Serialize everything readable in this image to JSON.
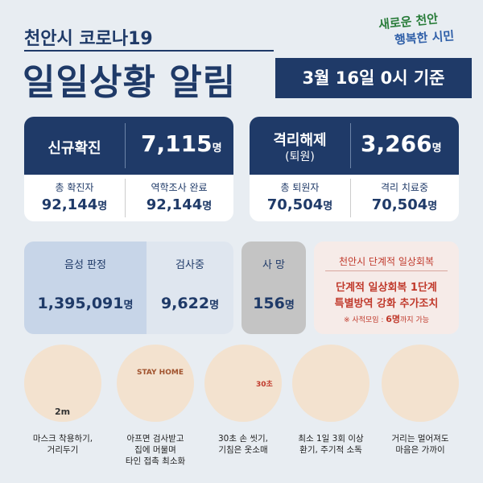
{
  "header": {
    "title_small": "천안시 코로나19",
    "title_big": "일일상황 알림",
    "date": "3월 16일 0시 기준",
    "logo_line1": "새로운 천안",
    "logo_line2": "행복한 시민"
  },
  "cards": {
    "new_cases": {
      "label": "신규확진",
      "value": "7,115",
      "unit": "명"
    },
    "total_cases": {
      "label": "총 확진자",
      "value": "92,144",
      "unit": "명"
    },
    "investigated": {
      "label": "역학조사 완료",
      "value": "92,144",
      "unit": "명"
    },
    "released": {
      "label": "격리해제",
      "sublabel": "(퇴원)",
      "value": "3,266",
      "unit": "명"
    },
    "total_released": {
      "label": "총 퇴원자",
      "value": "70,504",
      "unit": "명"
    },
    "in_treatment": {
      "label": "격리 치료중",
      "value": "70,504",
      "unit": "명"
    },
    "negative": {
      "label": "음성 판정",
      "value": "1,395,091",
      "unit": "명"
    },
    "testing": {
      "label": "검사중",
      "value": "9,622",
      "unit": "명"
    },
    "deaths": {
      "label": "사 망",
      "value": "156",
      "unit": "명"
    }
  },
  "notice": {
    "title": "천안시 단계적 일상회복",
    "line1": "단계적 일상회복 1단계",
    "line2": "특별방역 강화 추가조치",
    "note_prefix": "※ 사적모임 : ",
    "note_highlight": "6명",
    "note_suffix": "까지 가능"
  },
  "tips": [
    {
      "illustration_text": "2m",
      "lines": [
        "마스크 착용하기,",
        "거리두기"
      ]
    },
    {
      "illustration_text": "STAY HOME",
      "lines": [
        "아프면 검사받고",
        "집에 머물며",
        "타인 접촉 최소화"
      ]
    },
    {
      "illustration_text": "30초",
      "lines": [
        "30초 손 씻기,",
        "기침은 옷소매"
      ]
    },
    {
      "illustration_text": null,
      "lines": [
        "최소 1일 3회 이상",
        "환기, 주기적 소독"
      ]
    },
    {
      "illustration_text": null,
      "lines": [
        "거리는 멀어져도",
        "마음은 가까이"
      ]
    }
  ]
}
